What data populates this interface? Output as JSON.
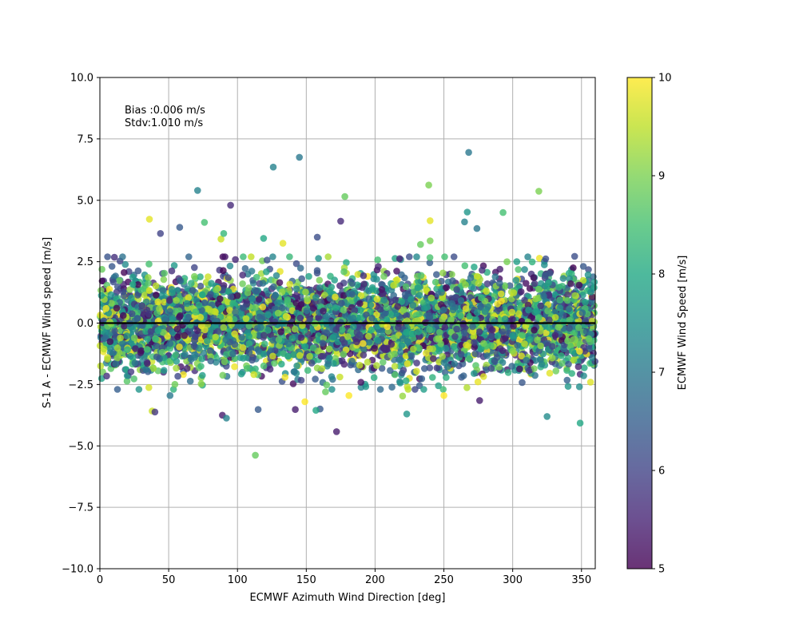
{
  "chart_data": {
    "type": "scatter",
    "title": "",
    "xlabel": "ECMWF Azimuth Wind Direction [deg]",
    "ylabel": "S-1 A - ECMWF Wind speed [m/s]",
    "xlim": [
      0,
      360
    ],
    "ylim": [
      -10,
      10
    ],
    "xticks": [
      0,
      50,
      100,
      150,
      200,
      250,
      300,
      350
    ],
    "xtick_labels": [
      "0",
      "50",
      "100",
      "150",
      "200",
      "250",
      "300",
      "350"
    ],
    "yticks": [
      -10,
      -7.5,
      -5,
      -2.5,
      0,
      2.5,
      5,
      7.5,
      10
    ],
    "ytick_labels": [
      "−10.0",
      "−7.5",
      "−5.0",
      "−2.5",
      "0.0",
      "2.5",
      "5.0",
      "7.5",
      "10.0"
    ],
    "grid": true,
    "reference_line_y": 0,
    "annotations": [
      "Bias :0.006 m/s",
      "Stdv:1.010 m/s"
    ],
    "colorbar": {
      "label": "ECMWF Wind Speed [m/s]",
      "range": [
        5,
        10
      ],
      "ticks": [
        5,
        6,
        7,
        8,
        9,
        10
      ],
      "tick_labels": [
        "5",
        "6",
        "7",
        "8",
        "9",
        "10"
      ],
      "colormap": "viridis"
    },
    "bulk_distribution": {
      "x_range": [
        0,
        360
      ],
      "y_mean": 0.006,
      "y_std": 1.01,
      "color_value_range": [
        5,
        10
      ],
      "approx_count": 5000
    },
    "outliers": [
      [
        126,
        6.35,
        7.2
      ],
      [
        145,
        6.75,
        7.0
      ],
      [
        268,
        6.95,
        7.0
      ],
      [
        71,
        5.4,
        7.2
      ],
      [
        239,
        5.62,
        9.0
      ],
      [
        319,
        5.37,
        9.0
      ],
      [
        178,
        5.15,
        8.8
      ],
      [
        95,
        4.8,
        5.6
      ],
      [
        36,
        4.23,
        9.8
      ],
      [
        293,
        4.5,
        8.5
      ],
      [
        175,
        4.15,
        5.6
      ],
      [
        267,
        4.52,
        7.6
      ],
      [
        265,
        4.12,
        7.2
      ],
      [
        240,
        4.17,
        9.8
      ],
      [
        76,
        4.1,
        8.5
      ],
      [
        133,
        3.25,
        9.8
      ],
      [
        158,
        3.5,
        6.2
      ],
      [
        38,
        -3.58,
        9.6
      ],
      [
        40,
        -3.62,
        5.8
      ],
      [
        89,
        -3.75,
        5.4
      ],
      [
        92,
        -3.87,
        7.2
      ],
      [
        115,
        -3.52,
        6.4
      ],
      [
        142,
        -3.52,
        5.4
      ],
      [
        160,
        -3.5,
        6.4
      ],
      [
        157,
        -3.55,
        8.0
      ],
      [
        172,
        -4.42,
        5.4
      ],
      [
        113,
        -5.38,
        8.8
      ],
      [
        149,
        -3.2,
        10
      ],
      [
        181,
        -2.95,
        10
      ],
      [
        223,
        -3.7,
        7.6
      ],
      [
        276,
        -3.15,
        5.4
      ],
      [
        325,
        -3.8,
        7.4
      ],
      [
        349,
        -4.07,
        8.0
      ],
      [
        220,
        -2.97,
        9.2
      ],
      [
        250,
        -2.95,
        10
      ],
      [
        164,
        -2.8,
        8.8
      ],
      [
        51,
        -2.95,
        7.0
      ],
      [
        246,
        -2.55,
        7.8
      ],
      [
        345,
        2.72,
        6.2
      ],
      [
        303,
        2.5,
        7.8
      ],
      [
        58,
        3.9,
        6.4
      ],
      [
        44,
        3.65,
        6.0
      ],
      [
        88,
        3.42,
        9.6
      ],
      [
        90,
        3.65,
        8.3
      ],
      [
        119,
        3.45,
        8.0
      ],
      [
        274,
        3.85,
        7.0
      ],
      [
        233,
        3.2,
        8.8
      ],
      [
        240,
        3.35,
        9.0
      ]
    ]
  }
}
